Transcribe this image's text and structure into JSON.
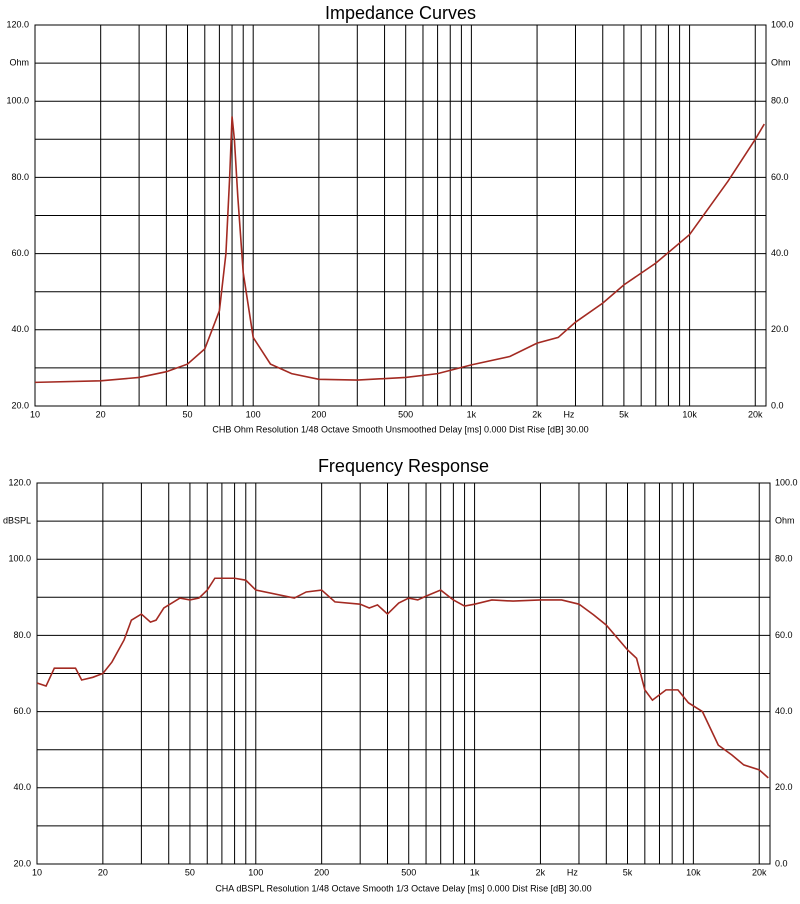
{
  "chart_data": [
    {
      "type": "line",
      "title": "Impedance Curves",
      "xlabel": "CHB Ohm Resolution 1/48 Octave Smooth Unsmoothed Delay [ms] 0.000 Dist Rise [dB] 30.00",
      "xscale": "log",
      "xlim": [
        10,
        22400
      ],
      "ylim": [
        20,
        120
      ],
      "y2lim": [
        0,
        100
      ],
      "xticks": [
        10,
        20,
        50,
        100,
        200,
        500,
        {
          "value": 1000,
          "label": "1k"
        },
        {
          "value": 2000,
          "label": "2k"
        },
        {
          "value": 2800,
          "label": "Hz"
        },
        {
          "value": 5000,
          "label": "5k"
        },
        {
          "value": 10000,
          "label": "10k"
        },
        {
          "value": 20000,
          "label": "20k"
        }
      ],
      "yticks": [
        {
          "value": 20,
          "label": "20.0"
        },
        {
          "value": 40,
          "label": "40.0"
        },
        {
          "value": 60,
          "label": "60.0"
        },
        {
          "value": 80,
          "label": "80.0"
        },
        {
          "value": 100,
          "label": "100.0"
        },
        {
          "value": 110,
          "label": "Ohm"
        },
        {
          "value": 120,
          "label": "120.0"
        }
      ],
      "y2ticks": [
        {
          "value": 0,
          "label": "0.0"
        },
        {
          "value": 20,
          "label": "20.0"
        },
        {
          "value": 40,
          "label": "40.0"
        },
        {
          "value": 60,
          "label": "60.0"
        },
        {
          "value": 80,
          "label": "80.0"
        },
        {
          "value": 90,
          "label": "Ohm"
        },
        {
          "value": 100,
          "label": "100.0"
        }
      ],
      "xgrid": [
        10,
        20,
        30,
        40,
        50,
        60,
        70,
        80,
        90,
        100,
        200,
        300,
        400,
        500,
        600,
        700,
        800,
        900,
        1000,
        2000,
        3000,
        4000,
        5000,
        6000,
        7000,
        8000,
        9000,
        10000,
        20000
      ],
      "ygrid": [
        20,
        30,
        40,
        50,
        60,
        70,
        80,
        90,
        100,
        110,
        120
      ],
      "color": "#a32a22",
      "x": [
        10,
        20,
        30,
        40,
        50,
        60,
        70,
        75,
        78,
        80,
        82,
        85,
        90,
        100,
        120,
        150,
        200,
        300,
        500,
        700,
        1000,
        1500,
        2000,
        2500,
        3000,
        4000,
        5000,
        7000,
        10000,
        15000,
        20000,
        22000
      ],
      "values": [
        26.2,
        26.6,
        27.5,
        29,
        31,
        35,
        45,
        60,
        80,
        96,
        90,
        75,
        55,
        38,
        31,
        28.5,
        27,
        26.8,
        27.5,
        28.5,
        30.8,
        33,
        36.5,
        38,
        42,
        47,
        51.8,
        57.5,
        65,
        79,
        90,
        94
      ]
    },
    {
      "type": "line",
      "title": "Frequency Response",
      "xlabel": "CHA dBSPL Resolution 1/48 Octave Smooth 1/3 Octave Delay [ms] 0.000 Dist Rise [dB] 30.00",
      "xscale": "log",
      "xlim": [
        10,
        22400
      ],
      "ylim": [
        20,
        120
      ],
      "y2lim": [
        0,
        100
      ],
      "xticks": [
        10,
        20,
        50,
        100,
        200,
        500,
        {
          "value": 1000,
          "label": "1k"
        },
        {
          "value": 2000,
          "label": "2k"
        },
        {
          "value": 2800,
          "label": "Hz"
        },
        {
          "value": 5000,
          "label": "5k"
        },
        {
          "value": 10000,
          "label": "10k"
        },
        {
          "value": 20000,
          "label": "20k"
        }
      ],
      "yticks": [
        {
          "value": 20,
          "label": "20.0"
        },
        {
          "value": 40,
          "label": "40.0"
        },
        {
          "value": 60,
          "label": "60.0"
        },
        {
          "value": 80,
          "label": "80.0"
        },
        {
          "value": 100,
          "label": "100.0"
        },
        {
          "value": 110,
          "label": "dBSPL"
        },
        {
          "value": 120,
          "label": "120.0"
        }
      ],
      "y2ticks": [
        {
          "value": 0,
          "label": "0.0"
        },
        {
          "value": 20,
          "label": "20.0"
        },
        {
          "value": 40,
          "label": "40.0"
        },
        {
          "value": 60,
          "label": "60.0"
        },
        {
          "value": 80,
          "label": "80.0"
        },
        {
          "value": 90,
          "label": "Ohm"
        },
        {
          "value": 100,
          "label": "100.0"
        }
      ],
      "xgrid": [
        10,
        20,
        30,
        40,
        50,
        60,
        70,
        80,
        90,
        100,
        200,
        300,
        400,
        500,
        600,
        700,
        800,
        900,
        1000,
        2000,
        3000,
        4000,
        5000,
        6000,
        7000,
        8000,
        9000,
        10000,
        20000
      ],
      "ygrid": [
        20,
        30,
        40,
        50,
        60,
        70,
        80,
        90,
        100,
        110,
        120
      ],
      "color": "#a32a22",
      "x": [
        10,
        11,
        12,
        15,
        16,
        18,
        20,
        22,
        25,
        27,
        30,
        33,
        35,
        38,
        45,
        50,
        55,
        60,
        65,
        80,
        90,
        100,
        150,
        170,
        200,
        230,
        300,
        330,
        360,
        400,
        450,
        500,
        550,
        600,
        700,
        800,
        900,
        1000,
        1200,
        1500,
        2000,
        2500,
        3000,
        3500,
        4000,
        5000,
        5500,
        6000,
        6500,
        7500,
        8500,
        9500,
        11000,
        13000,
        15000,
        17000,
        20000,
        22000
      ],
      "values": [
        67.5,
        66.7,
        71.4,
        71.4,
        68.3,
        69,
        70,
        73,
        78.8,
        84,
        85.6,
        83.5,
        84,
        87.2,
        89.8,
        89.3,
        89.8,
        91.9,
        95,
        95,
        94.5,
        91.9,
        89.8,
        91.4,
        91.9,
        88.8,
        88.2,
        87.2,
        88,
        85.6,
        88.5,
        89.8,
        89.3,
        90.3,
        91.9,
        89.3,
        87.7,
        88.2,
        89.3,
        89,
        89.3,
        89.3,
        88.2,
        85.4,
        82.7,
        76.2,
        74,
        65.7,
        63,
        65.7,
        65.7,
        62.3,
        60,
        51.2,
        48.6,
        46,
        44.7,
        42.6
      ]
    }
  ]
}
